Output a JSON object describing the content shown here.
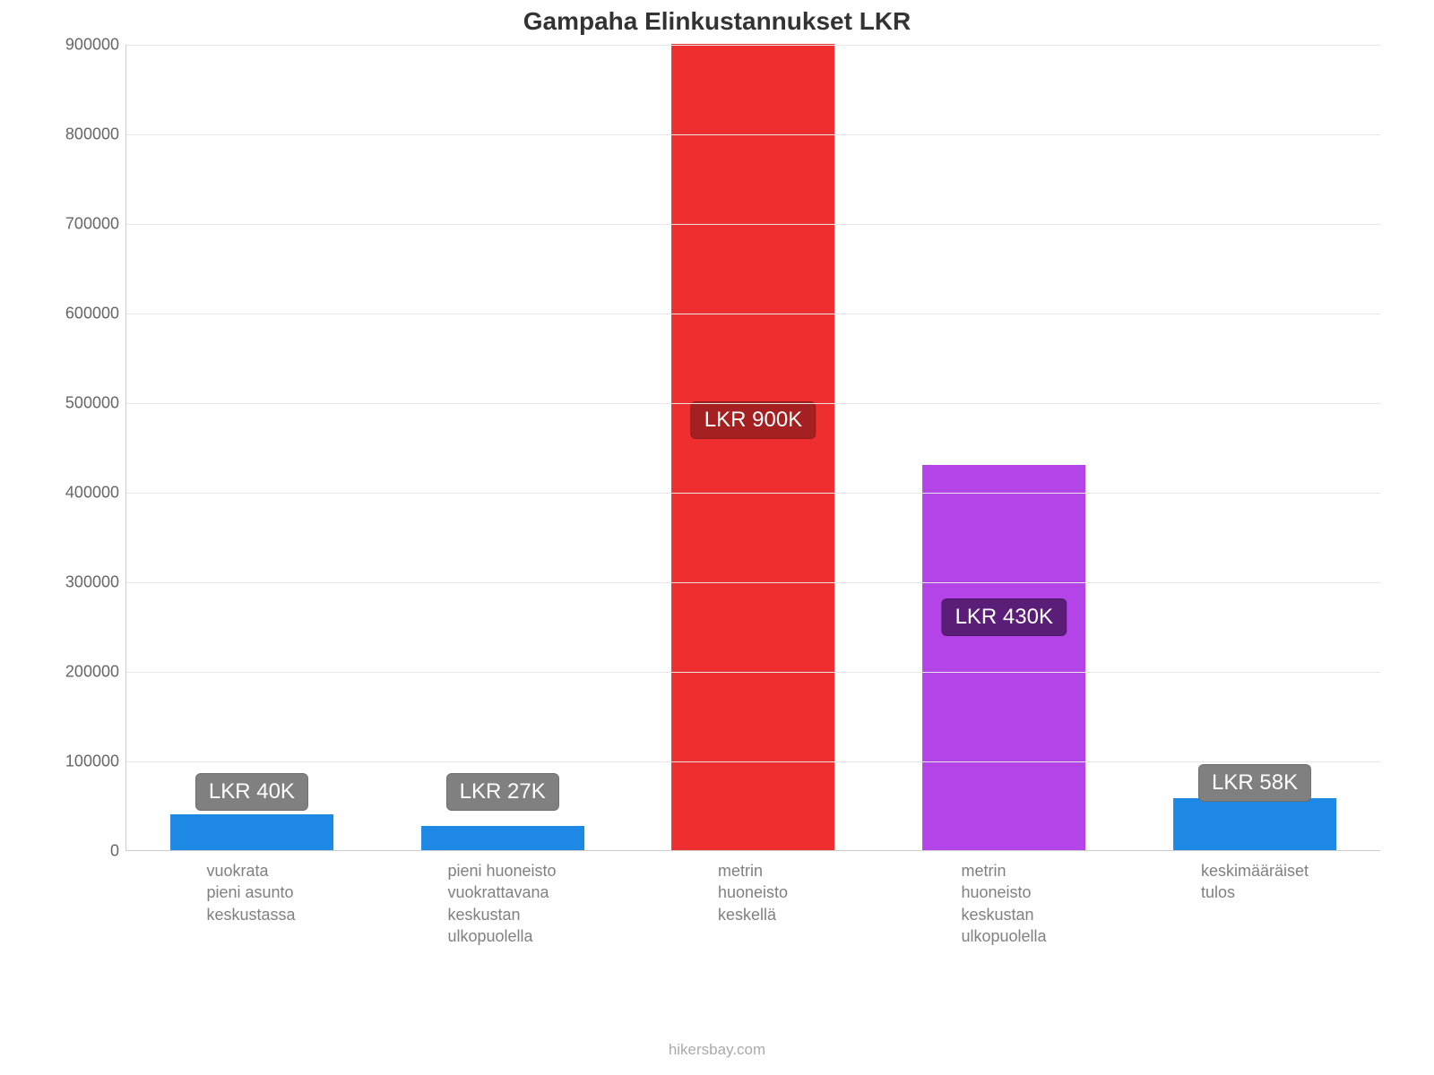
{
  "chart": {
    "type": "bar",
    "title": "Gampaha Elinkustannukset LKR",
    "title_fontsize": 28,
    "title_color": "#333333",
    "background_color": "#ffffff",
    "grid_color": "#e6e6e6",
    "axis_color": "#cccccc",
    "tick_label_color": "#666666",
    "tick_label_fontsize": 18,
    "x_label_color": "#808080",
    "x_label_fontsize": 18,
    "badge_fontsize": 24,
    "badge_radius": 6,
    "bar_width_pct": 65,
    "ylim": [
      0,
      900000
    ],
    "ytick_step": 100000,
    "yticks": [
      {
        "value": 0,
        "label": "0"
      },
      {
        "value": 100000,
        "label": "100000"
      },
      {
        "value": 200000,
        "label": "200000"
      },
      {
        "value": 300000,
        "label": "300000"
      },
      {
        "value": 400000,
        "label": "400000"
      },
      {
        "value": 500000,
        "label": "500000"
      },
      {
        "value": 600000,
        "label": "600000"
      },
      {
        "value": 700000,
        "label": "700000"
      },
      {
        "value": 800000,
        "label": "800000"
      },
      {
        "value": 900000,
        "label": "900000"
      }
    ],
    "bars": [
      {
        "category": "vuokrata\npieni asunto\nkeskustassa",
        "value": 40000,
        "bar_color": "#1e88e5",
        "badge_text": "LKR 40K",
        "badge_color": "#808080",
        "badge_y": 65000
      },
      {
        "category": "pieni huoneisto\nvuokrattavana\nkeskustan\nulkopuolella",
        "value": 27000,
        "bar_color": "#1e88e5",
        "badge_text": "LKR 27K",
        "badge_color": "#808080",
        "badge_y": 65000
      },
      {
        "category": "metrin\nhuoneisto\nkeskellä",
        "value": 900000,
        "bar_color": "#ef2f2f",
        "badge_text": "LKR 900K",
        "badge_color": "#a52020",
        "badge_y": 480000
      },
      {
        "category": "metrin\nhuoneisto\nkeskustan\nulkopuolella",
        "value": 430000,
        "bar_color": "#b444e8",
        "badge_text": "LKR 430K",
        "badge_color": "#5b1e78",
        "badge_y": 260000
      },
      {
        "category": "keskimääräiset\ntulos",
        "value": 58000,
        "bar_color": "#1e88e5",
        "badge_text": "LKR 58K",
        "badge_color": "#808080",
        "badge_y": 75000
      }
    ],
    "footer": "hikersbay.com",
    "footer_color": "#aaaaaa",
    "footer_fontsize": 17
  }
}
